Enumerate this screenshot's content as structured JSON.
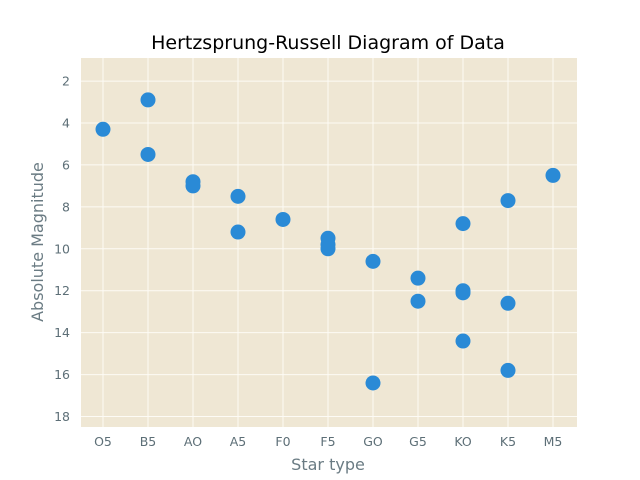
{
  "chart_data": {
    "type": "scatter",
    "title": "Hertzsprung-Russell Diagram of Data",
    "xlabel": "Star type",
    "ylabel": "Absolute Magnitude",
    "categories": [
      "O5",
      "B5",
      "AO",
      "A5",
      "F0",
      "F5",
      "GO",
      "G5",
      "KO",
      "K5",
      "M5"
    ],
    "y_ticks": [
      2,
      4,
      6,
      8,
      10,
      12,
      14,
      16,
      18
    ],
    "ylim": [
      18.5,
      0.9
    ],
    "y_inverted": true,
    "grid": true,
    "colors": {
      "background": "#efe7d4",
      "point": "#2a8ad6"
    },
    "points": [
      {
        "x": "O5",
        "y": 4.3
      },
      {
        "x": "B5",
        "y": 2.9
      },
      {
        "x": "B5",
        "y": 5.5
      },
      {
        "x": "AO",
        "y": 6.8
      },
      {
        "x": "AO",
        "y": 7.0
      },
      {
        "x": "A5",
        "y": 7.5
      },
      {
        "x": "A5",
        "y": 9.2
      },
      {
        "x": "F0",
        "y": 8.6
      },
      {
        "x": "F5",
        "y": 9.5
      },
      {
        "x": "F5",
        "y": 9.8
      },
      {
        "x": "F5",
        "y": 10.0
      },
      {
        "x": "GO",
        "y": 10.6
      },
      {
        "x": "GO",
        "y": 16.4
      },
      {
        "x": "G5",
        "y": 11.4
      },
      {
        "x": "G5",
        "y": 12.5
      },
      {
        "x": "KO",
        "y": 8.8
      },
      {
        "x": "KO",
        "y": 12.0
      },
      {
        "x": "KO",
        "y": 12.1
      },
      {
        "x": "KO",
        "y": 14.4
      },
      {
        "x": "K5",
        "y": 7.7
      },
      {
        "x": "K5",
        "y": 12.6
      },
      {
        "x": "K5",
        "y": 15.8
      },
      {
        "x": "M5",
        "y": 6.5
      }
    ]
  }
}
